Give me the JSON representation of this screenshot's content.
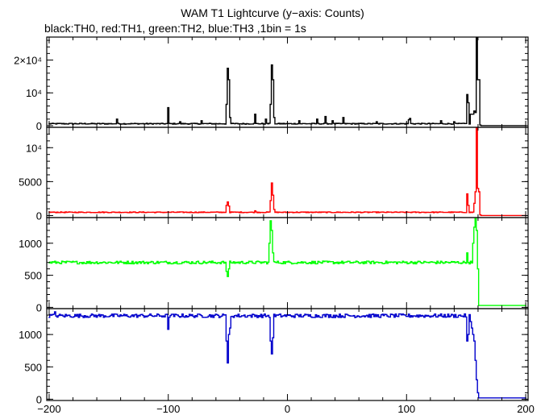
{
  "title": "WAM T1 Lightcurve (y−axis: Counts)",
  "subtitle": "black:TH0, red:TH1, green:TH2, blue:TH3 ,1bin = 1s",
  "chart_data": {
    "type": "line",
    "shared_x": {
      "range": [
        -202,
        202
      ],
      "ticks": [
        -200,
        -100,
        0,
        100,
        200
      ],
      "tick_labels": [
        "−200",
        "−100",
        "0",
        "100",
        "200"
      ]
    },
    "panels": [
      {
        "series": "TH0",
        "color": "#000000",
        "ylim": [
          -500,
          27000
        ],
        "yticks": [
          0,
          10000,
          20000
        ],
        "ytick_labels": [
          "0",
          "10⁴",
          "2×10⁴"
        ],
        "base": 600,
        "noise": 150,
        "features": [
          {
            "x": -143,
            "y": 2000
          },
          {
            "x": -100,
            "y": 5500
          },
          {
            "x": -90,
            "y": 1200
          },
          {
            "x": -72,
            "y": 1500
          },
          {
            "x": -51,
            "y": 6500
          },
          {
            "x": -50,
            "y": 17500
          },
          {
            "x": -49,
            "y": 14000
          },
          {
            "x": -48,
            "y": 2500
          },
          {
            "x": -27,
            "y": 3500
          },
          {
            "x": -18,
            "y": 2000
          },
          {
            "x": -14,
            "y": 6500
          },
          {
            "x": -13,
            "y": 18500
          },
          {
            "x": -12,
            "y": 14000
          },
          {
            "x": -11,
            "y": 2500
          },
          {
            "x": 10,
            "y": 1500
          },
          {
            "x": 25,
            "y": 2000
          },
          {
            "x": 32,
            "y": 2800
          },
          {
            "x": 38,
            "y": 1500
          },
          {
            "x": 47,
            "y": 2500
          },
          {
            "x": 75,
            "y": 1200
          },
          {
            "x": 102,
            "y": 1800
          },
          {
            "x": 103,
            "y": 2200
          },
          {
            "x": 129,
            "y": 1500
          },
          {
            "x": 140,
            "y": 1200
          },
          {
            "x": 151,
            "y": 9500
          },
          {
            "x": 152,
            "y": 7000
          },
          {
            "x": 154,
            "y": 3500
          },
          {
            "x": 155,
            "y": 3500
          },
          {
            "x": 156,
            "y": 3500
          },
          {
            "x": 157,
            "y": 4500
          },
          {
            "x": 158,
            "y": 4000
          },
          {
            "x": 159,
            "y": 27000
          },
          {
            "x": 160,
            "y": 14000
          },
          {
            "x": 161,
            "y": 14000
          },
          {
            "x": 162,
            "y": 200
          }
        ],
        "tail": 0
      },
      {
        "series": "TH1",
        "color": "#ff0000",
        "ylim": [
          -300,
          13000
        ],
        "yticks": [
          0,
          5000,
          10000
        ],
        "ytick_labels": [
          "0",
          "5000",
          "10⁴"
        ],
        "base": 480,
        "noise": 60,
        "features": [
          {
            "x": -51,
            "y": 1500
          },
          {
            "x": -50,
            "y": 2000
          },
          {
            "x": -49,
            "y": 1400
          },
          {
            "x": -27,
            "y": 700
          },
          {
            "x": -14,
            "y": 2200
          },
          {
            "x": -13,
            "y": 4800
          },
          {
            "x": -12,
            "y": 3000
          },
          {
            "x": -11,
            "y": 900
          },
          {
            "x": 151,
            "y": 3200
          },
          {
            "x": 152,
            "y": 1500
          },
          {
            "x": 157,
            "y": 1800
          },
          {
            "x": 158,
            "y": 3500
          },
          {
            "x": 159,
            "y": 13000
          },
          {
            "x": 160,
            "y": 4000
          },
          {
            "x": 161,
            "y": 3500
          },
          {
            "x": 162,
            "y": 100
          }
        ],
        "tail": 0
      },
      {
        "series": "TH2",
        "color": "#00ff00",
        "ylim": [
          -20,
          1400
        ],
        "yticks": [
          0,
          500,
          1000
        ],
        "ytick_labels": [
          "0",
          "500",
          "1000"
        ],
        "base": 700,
        "noise": 22,
        "features": [
          {
            "x": -51,
            "y": 560
          },
          {
            "x": -50,
            "y": 480
          },
          {
            "x": -49,
            "y": 600
          },
          {
            "x": -15,
            "y": 1000
          },
          {
            "x": -14,
            "y": 1350
          },
          {
            "x": -13,
            "y": 1200
          },
          {
            "x": -12,
            "y": 850
          },
          {
            "x": 151,
            "y": 850
          },
          {
            "x": 152,
            "y": 700
          },
          {
            "x": 156,
            "y": 1000
          },
          {
            "x": 157,
            "y": 1250
          },
          {
            "x": 158,
            "y": 1400
          },
          {
            "x": 159,
            "y": 1200
          },
          {
            "x": 160,
            "y": 600
          },
          {
            "x": 161,
            "y": 30
          }
        ],
        "tail": 30
      },
      {
        "series": "TH3",
        "color": "#0000cc",
        "ylim": [
          -20,
          1400
        ],
        "yticks": [
          0,
          500,
          1000
        ],
        "ytick_labels": [
          "0",
          "500",
          "1000"
        ],
        "base": 1290,
        "noise": 28,
        "features": [
          {
            "x": -195,
            "y": 1350
          },
          {
            "x": -100,
            "y": 1080
          },
          {
            "x": -51,
            "y": 900
          },
          {
            "x": -50,
            "y": 560
          },
          {
            "x": -49,
            "y": 1000
          },
          {
            "x": -48,
            "y": 1100
          },
          {
            "x": -14,
            "y": 900
          },
          {
            "x": -13,
            "y": 700
          },
          {
            "x": -12,
            "y": 950
          },
          {
            "x": 151,
            "y": 900
          },
          {
            "x": 152,
            "y": 1000
          },
          {
            "x": 154,
            "y": 1200
          },
          {
            "x": 155,
            "y": 1100
          },
          {
            "x": 156,
            "y": 1000
          },
          {
            "x": 157,
            "y": 900
          },
          {
            "x": 158,
            "y": 600
          },
          {
            "x": 159,
            "y": 300
          },
          {
            "x": 160,
            "y": 100
          },
          {
            "x": 161,
            "y": 20
          }
        ],
        "tail": 20
      }
    ]
  }
}
